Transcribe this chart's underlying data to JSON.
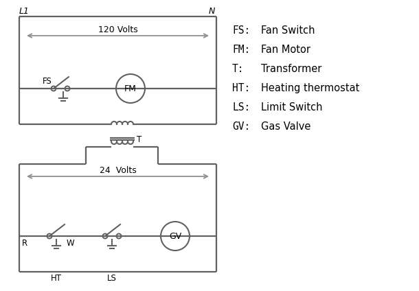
{
  "bg_color": "#ffffff",
  "line_color": "#606060",
  "arrow_color": "#909090",
  "text_color": "#000000",
  "legend": [
    [
      "FS:",
      "Fan Switch"
    ],
    [
      "FM:",
      "Fan Motor"
    ],
    [
      "T:",
      "Transformer"
    ],
    [
      "HT:",
      "Heating thermostat"
    ],
    [
      "LS:",
      "Limit Switch"
    ],
    [
      "GV:",
      "Gas Valve"
    ]
  ],
  "L1_label": "L1",
  "N_label": "N",
  "volts120_label": "120 Volts",
  "volts24_label": "24  Volts",
  "T_label": "T",
  "R_label": "R",
  "W_label": "W",
  "HT_label": "HT",
  "LS_label": "LS",
  "FS_label": "FS",
  "FM_label": "FM",
  "GV_label": "GV"
}
